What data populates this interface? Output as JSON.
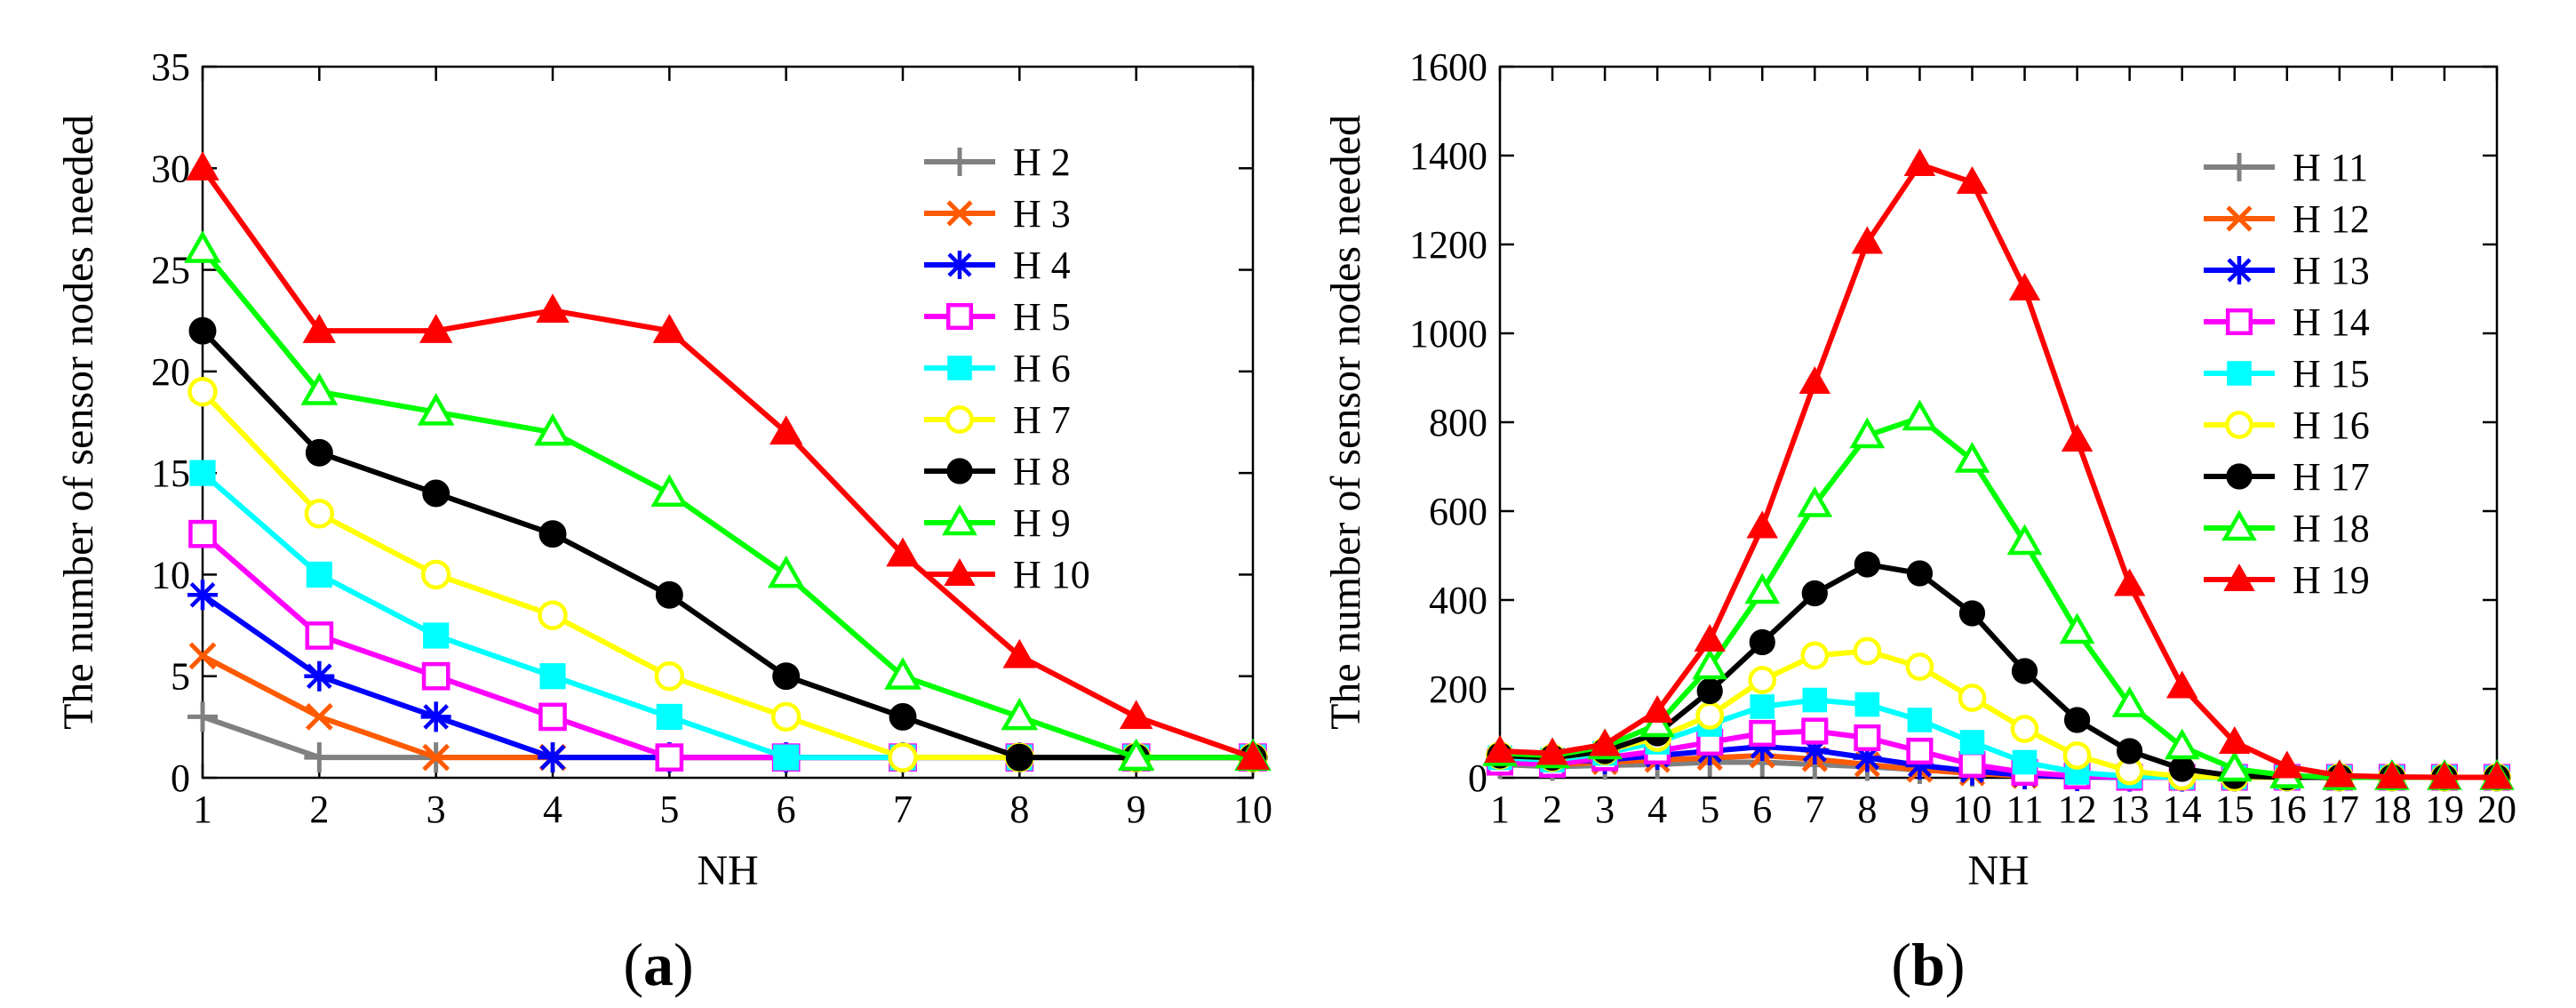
{
  "chart_data": [
    {
      "type": "line",
      "caption_open": "(",
      "caption_letter": "a",
      "caption_close": ")",
      "xlabel": "NH",
      "ylabel": "The number of sensor nodes needed",
      "xlim": [
        1,
        10
      ],
      "ylim": [
        0,
        35
      ],
      "xticks": [
        "1",
        "2",
        "3",
        "4",
        "5",
        "6",
        "7",
        "8",
        "9",
        "10"
      ],
      "yticks": [
        "0",
        "5",
        "10",
        "15",
        "20",
        "25",
        "30",
        "35"
      ],
      "x": [
        1,
        2,
        3,
        4,
        5,
        6,
        7,
        8,
        9,
        10
      ],
      "legend_position": "top-right",
      "series": [
        {
          "name": "H 2",
          "color": "#808080",
          "marker": "plus",
          "values": [
            3,
            1,
            1,
            1,
            1,
            1,
            1,
            1,
            1,
            1
          ]
        },
        {
          "name": "H 3",
          "color": "#ff5a00",
          "marker": "x",
          "values": [
            6,
            3,
            1,
            1,
            1,
            1,
            1,
            1,
            1,
            1
          ]
        },
        {
          "name": "H 4",
          "color": "#0000ff",
          "marker": "star",
          "values": [
            9,
            5,
            3,
            1,
            1,
            1,
            1,
            1,
            1,
            1
          ]
        },
        {
          "name": "H 5",
          "color": "#ff00ff",
          "marker": "square-open",
          "values": [
            12,
            7,
            5,
            3,
            1,
            1,
            1,
            1,
            1,
            1
          ]
        },
        {
          "name": "H 6",
          "color": "#00ffff",
          "marker": "square-filled",
          "values": [
            15,
            10,
            7,
            5,
            3,
            1,
            1,
            1,
            1,
            1
          ]
        },
        {
          "name": "H 7",
          "color": "#ffff00",
          "marker": "circle-open",
          "values": [
            19,
            13,
            10,
            8,
            5,
            3,
            1,
            1,
            1,
            1
          ]
        },
        {
          "name": "H 8",
          "color": "#000000",
          "marker": "circle-filled",
          "values": [
            22,
            16,
            14,
            12,
            9,
            5,
            3,
            1,
            1,
            1
          ]
        },
        {
          "name": "H 9",
          "color": "#00ff00",
          "marker": "triangle-open",
          "values": [
            26,
            19,
            18,
            17,
            14,
            10,
            5,
            3,
            1,
            1
          ]
        },
        {
          "name": "H 10",
          "color": "#ff0000",
          "marker": "triangle-filled",
          "values": [
            30,
            22,
            22,
            23,
            22,
            17,
            11,
            6,
            3,
            1
          ]
        }
      ]
    },
    {
      "type": "line",
      "caption_open": "(",
      "caption_letter": "b",
      "caption_close": ")",
      "xlabel": "NH",
      "ylabel": "The number of sensor nodes needed",
      "xlim": [
        1,
        20
      ],
      "ylim": [
        0,
        1600
      ],
      "xticks": [
        "1",
        "2",
        "3",
        "4",
        "5",
        "6",
        "7",
        "8",
        "9",
        "10",
        "11",
        "12",
        "13",
        "14",
        "15",
        "16",
        "17",
        "18",
        "19",
        "20"
      ],
      "yticks": [
        "0",
        "200",
        "400",
        "600",
        "800",
        "1000",
        "1200",
        "1400",
        "1600"
      ],
      "x": [
        1,
        2,
        3,
        4,
        5,
        6,
        7,
        8,
        9,
        10,
        11,
        12,
        13,
        14,
        15,
        16,
        17,
        18,
        19,
        20
      ],
      "legend_position": "top-right",
      "series": [
        {
          "name": "H 11",
          "color": "#808080",
          "marker": "plus",
          "values": [
            30,
            25,
            28,
            30,
            35,
            35,
            30,
            25,
            18,
            12,
            6,
            3,
            1,
            1,
            1,
            1,
            1,
            1,
            1,
            1
          ]
        },
        {
          "name": "H 12",
          "color": "#ff5a00",
          "marker": "x",
          "values": [
            35,
            30,
            35,
            40,
            45,
            50,
            42,
            30,
            18,
            10,
            4,
            2,
            1,
            1,
            1,
            1,
            1,
            1,
            1,
            1
          ]
        },
        {
          "name": "H 13",
          "color": "#0000ff",
          "marker": "star",
          "values": [
            40,
            35,
            40,
            50,
            60,
            70,
            62,
            45,
            28,
            15,
            6,
            2,
            1,
            1,
            1,
            1,
            1,
            1,
            1,
            1
          ]
        },
        {
          "name": "H 14",
          "color": "#ff00ff",
          "marker": "square-open",
          "values": [
            35,
            30,
            45,
            60,
            80,
            100,
            105,
            90,
            60,
            30,
            12,
            4,
            1,
            1,
            1,
            1,
            1,
            1,
            1,
            1
          ]
        },
        {
          "name": "H 15",
          "color": "#00ffff",
          "marker": "square-filled",
          "values": [
            45,
            40,
            55,
            80,
            120,
            160,
            175,
            165,
            130,
            80,
            35,
            12,
            3,
            1,
            1,
            1,
            1,
            1,
            1,
            1
          ]
        },
        {
          "name": "H 16",
          "color": "#ffff00",
          "marker": "circle-open",
          "values": [
            50,
            45,
            60,
            90,
            140,
            220,
            275,
            285,
            250,
            180,
            110,
            50,
            15,
            3,
            1,
            1,
            1,
            1,
            1,
            1
          ]
        },
        {
          "name": "H 17",
          "color": "#000000",
          "marker": "circle-filled",
          "values": [
            50,
            45,
            60,
            100,
            195,
            305,
            415,
            480,
            460,
            370,
            240,
            130,
            60,
            20,
            4,
            1,
            1,
            1,
            1,
            1
          ]
        },
        {
          "name": "H 18",
          "color": "#00ff00",
          "marker": "triangle-open",
          "values": [
            55,
            50,
            70,
            120,
            250,
            420,
            615,
            770,
            810,
            715,
            530,
            330,
            165,
            70,
            20,
            5,
            1,
            1,
            1,
            1
          ]
        },
        {
          "name": "H 19",
          "color": "#ff0000",
          "marker": "triangle-filled",
          "values": [
            60,
            55,
            75,
            150,
            310,
            565,
            890,
            1205,
            1380,
            1340,
            1100,
            760,
            435,
            205,
            80,
            25,
            5,
            2,
            1,
            1
          ]
        }
      ]
    }
  ]
}
